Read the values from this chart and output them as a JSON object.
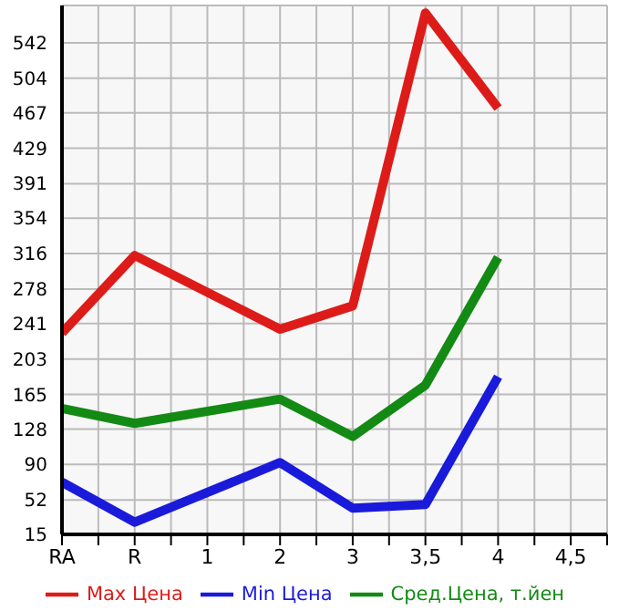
{
  "chart_data": {
    "type": "line",
    "categories": [
      "RA",
      "R",
      "1",
      "2",
      "3",
      "3,5",
      "4",
      "4,5"
    ],
    "series": [
      {
        "name": "Max Цена",
        "color": "#dd1c1a",
        "values": [
          231,
          314,
          null,
          235,
          260,
          574,
          472,
          null
        ]
      },
      {
        "name": "Min Цена",
        "color": "#1a1adb",
        "values": [
          71,
          28,
          null,
          92,
          43,
          47,
          184,
          null
        ]
      },
      {
        "name": "Сред.Цена, т.йен",
        "color": "#138a13",
        "values": [
          150,
          134,
          null,
          160,
          120,
          175,
          312,
          null
        ]
      }
    ],
    "ylim": [
      15,
      582
    ],
    "yticks": [
      15,
      52,
      90,
      128,
      165,
      203,
      241,
      278,
      316,
      354,
      391,
      429,
      467,
      504,
      542
    ],
    "grid": true,
    "legend": "bottom",
    "marker": "none",
    "line_style": "solid"
  }
}
